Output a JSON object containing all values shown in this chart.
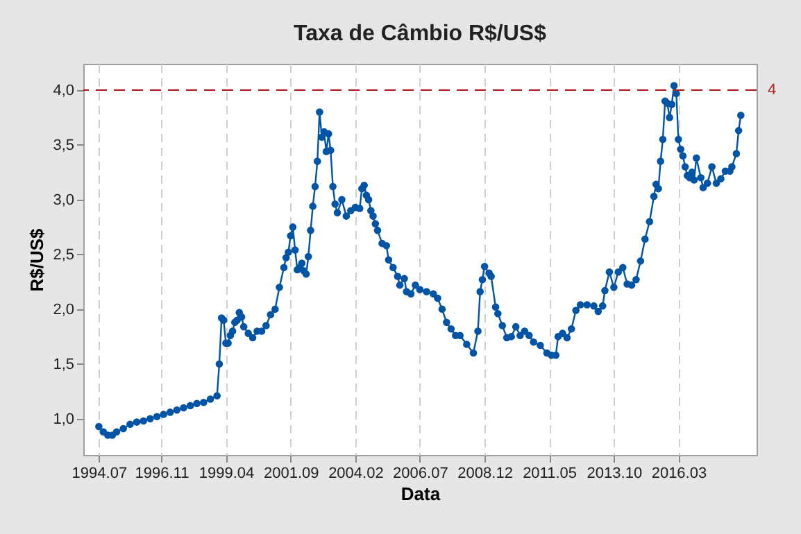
{
  "chart_data": {
    "type": "line",
    "title": "Taxa de Câmbio  R$/US$",
    "xlabel": "Data",
    "ylabel": "R$/US$",
    "x": [
      "1994-07",
      "1994-09",
      "1994-11",
      "1995-01",
      "1995-03",
      "1995-06",
      "1995-09",
      "1995-12",
      "1996-03",
      "1996-06",
      "1996-09",
      "1996-12",
      "1997-03",
      "1997-06",
      "1997-09",
      "1997-12",
      "1998-03",
      "1998-06",
      "1998-09",
      "1998-12",
      "1999-01",
      "1999-02",
      "1999-03",
      "1999-04",
      "1999-05",
      "1999-06",
      "1999-07",
      "1999-08",
      "1999-09",
      "1999-10",
      "1999-11",
      "1999-12",
      "2000-02",
      "2000-04",
      "2000-06",
      "2000-08",
      "2000-10",
      "2000-12",
      "2001-02",
      "2001-04",
      "2001-06",
      "2001-07",
      "2001-08",
      "2001-09",
      "2001-10",
      "2001-11",
      "2001-12",
      "2002-01",
      "2002-02",
      "2002-03",
      "2002-04",
      "2002-05",
      "2002-06",
      "2002-07",
      "2002-08",
      "2002-09",
      "2002-10",
      "2002-11",
      "2002-12",
      "2003-01",
      "2003-02",
      "2003-03",
      "2003-04",
      "2003-05",
      "2003-06",
      "2003-08",
      "2003-10",
      "2003-12",
      "2004-02",
      "2004-04",
      "2004-05",
      "2004-06",
      "2004-07",
      "2004-08",
      "2004-09",
      "2004-10",
      "2004-11",
      "2004-12",
      "2005-02",
      "2005-04",
      "2005-05",
      "2005-07",
      "2005-09",
      "2005-10",
      "2005-12",
      "2006-01",
      "2006-03",
      "2006-05",
      "2006-07",
      "2006-10",
      "2007-01",
      "2007-03",
      "2007-05",
      "2007-07",
      "2007-09",
      "2007-11",
      "2008-01",
      "2008-04",
      "2008-07",
      "2008-09",
      "2008-10",
      "2008-11",
      "2008-12",
      "2009-02",
      "2009-03",
      "2009-05",
      "2009-06",
      "2009-08",
      "2009-10",
      "2009-12",
      "2010-02",
      "2010-04",
      "2010-06",
      "2010-08",
      "2010-10",
      "2011-01",
      "2011-04",
      "2011-06",
      "2011-08",
      "2011-09",
      "2011-11",
      "2012-01",
      "2012-03",
      "2012-05",
      "2012-07",
      "2012-10",
      "2013-01",
      "2013-03",
      "2013-05",
      "2013-06",
      "2013-08",
      "2013-10",
      "2013-12",
      "2014-02",
      "2014-04",
      "2014-06",
      "2014-08",
      "2014-10",
      "2014-12",
      "2015-02",
      "2015-04",
      "2015-05",
      "2015-06",
      "2015-07",
      "2015-08",
      "2015-09",
      "2015-10",
      "2015-11",
      "2015-12",
      "2016-01",
      "2016-02",
      "2016-03",
      "2016-04",
      "2016-05",
      "2016-06",
      "2016-07",
      "2016-08",
      "2016-09",
      "2016-10",
      "2016-11",
      "2017-01",
      "2017-02",
      "2017-04",
      "2017-06",
      "2017-08",
      "2017-10",
      "2017-12",
      "2018-02",
      "2018-03",
      "2018-05",
      "2018-06",
      "2018-07"
    ],
    "series": [
      {
        "color": "#0054a6",
        "values": [
          0.93,
          0.88,
          0.85,
          0.85,
          0.88,
          0.91,
          0.95,
          0.97,
          0.98,
          1.0,
          1.02,
          1.04,
          1.06,
          1.08,
          1.1,
          1.12,
          1.14,
          1.15,
          1.18,
          1.21,
          1.5,
          1.92,
          1.9,
          1.69,
          1.69,
          1.76,
          1.8,
          1.88,
          1.9,
          1.97,
          1.93,
          1.84,
          1.78,
          1.74,
          1.8,
          1.8,
          1.85,
          1.95,
          2.0,
          2.2,
          2.38,
          2.47,
          2.52,
          2.67,
          2.75,
          2.54,
          2.36,
          2.38,
          2.42,
          2.35,
          2.32,
          2.48,
          2.72,
          2.94,
          3.12,
          3.35,
          3.8,
          3.57,
          3.62,
          3.44,
          3.6,
          3.45,
          3.12,
          2.96,
          2.88,
          3.0,
          2.85,
          2.9,
          2.93,
          2.92,
          3.1,
          3.13,
          3.04,
          3.0,
          2.9,
          2.85,
          2.78,
          2.72,
          2.6,
          2.58,
          2.45,
          2.38,
          2.3,
          2.22,
          2.28,
          2.16,
          2.14,
          2.22,
          2.18,
          2.16,
          2.14,
          2.1,
          2.0,
          1.88,
          1.82,
          1.76,
          1.76,
          1.68,
          1.6,
          1.8,
          2.16,
          2.27,
          2.39,
          2.33,
          2.3,
          2.02,
          1.96,
          1.85,
          1.74,
          1.75,
          1.84,
          1.76,
          1.8,
          1.76,
          1.7,
          1.67,
          1.6,
          1.58,
          1.58,
          1.75,
          1.78,
          1.74,
          1.82,
          1.99,
          2.04,
          2.04,
          2.03,
          1.98,
          2.03,
          2.17,
          2.34,
          2.2,
          2.34,
          2.38,
          2.23,
          2.22,
          2.27,
          2.44,
          2.64,
          2.8,
          3.03,
          3.14,
          3.1,
          3.35,
          3.55,
          3.9,
          3.88,
          3.75,
          3.87,
          4.04,
          3.97,
          3.55,
          3.46,
          3.4,
          3.3,
          3.22,
          3.2,
          3.25,
          3.18,
          3.38,
          3.2,
          3.11,
          3.15,
          3.3,
          3.15,
          3.19,
          3.26,
          3.26,
          3.3,
          3.42,
          3.63,
          3.77
        ]
      }
    ],
    "xlim": [
      "1993-12",
      "2019-02"
    ],
    "xticks": [
      {
        "value": "1994-07",
        "label": "1994.07"
      },
      {
        "value": "1996-11",
        "label": "1996.11"
      },
      {
        "value": "1999-04",
        "label": "1999.04"
      },
      {
        "value": "2001-09",
        "label": "2001.09"
      },
      {
        "value": "2004-02",
        "label": "2004.02"
      },
      {
        "value": "2006-07",
        "label": "2006.07"
      },
      {
        "value": "2008-12",
        "label": "2008.12"
      },
      {
        "value": "2011-05",
        "label": "2011.05"
      },
      {
        "value": "2013-10",
        "label": "2013.10"
      },
      {
        "value": "2016-03",
        "label": "2016.03"
      }
    ],
    "ylim": [
      0.67,
      4.24
    ],
    "yticks": [
      {
        "value": 1,
        "label": "1,0"
      },
      {
        "value": 1.5,
        "label": "1,5"
      },
      {
        "value": 2,
        "label": "2,0"
      },
      {
        "value": 2.5,
        "label": "2,5"
      },
      {
        "value": 3,
        "label": "3,0"
      },
      {
        "value": 3.5,
        "label": "3,5"
      },
      {
        "value": 4,
        "label": "4,0"
      }
    ],
    "ref_lines": [
      {
        "axis": "y",
        "value": 4,
        "label": "4",
        "color": "#b22222",
        "line_style": "dashed"
      }
    ],
    "grid": "x",
    "marker": "circle",
    "line_style": "solid"
  }
}
